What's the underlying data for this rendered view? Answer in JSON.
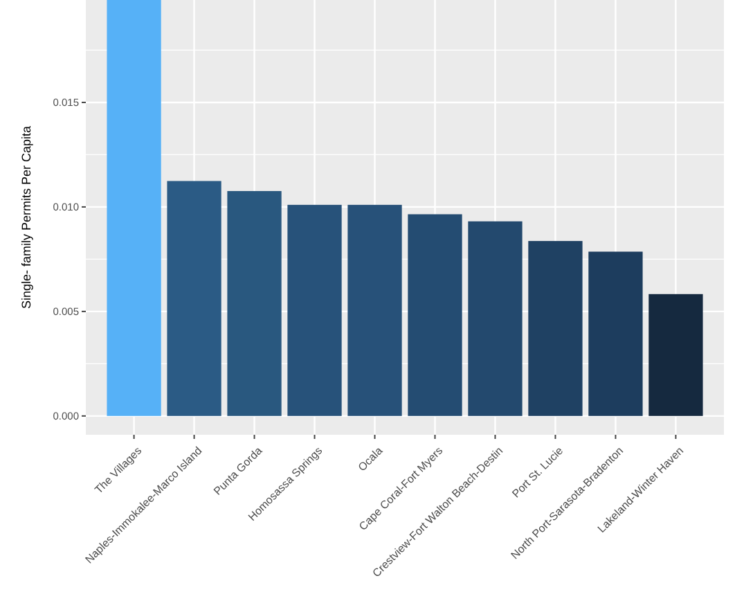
{
  "chart_data": {
    "type": "bar",
    "ylabel": "Single- family Permits Per Capita",
    "categories": [
      "The Villages",
      "Naples-Immokalee-Marco Island",
      "Punta Gorda",
      "Homosassa Springs",
      "Ocala",
      "Cape Coral-Fort Myers",
      "Crestview-Fort Walton Beach-Destin",
      "Port St. Lucie",
      "North Port-Sarasota-Bradenton",
      "Lakeland-Winter Haven"
    ],
    "values": [
      0.0199,
      0.01124,
      0.01076,
      0.0101,
      0.0101,
      0.00965,
      0.00931,
      0.00837,
      0.00786,
      0.00583
    ],
    "colors": [
      "#56b1f7",
      "#2b5b85",
      "#29587f",
      "#27527a",
      "#275179",
      "#244c72",
      "#23496e",
      "#1f4163",
      "#1d3d5e",
      "#15293f"
    ],
    "ylim": [
      -0.0009,
      0.0199
    ],
    "yticks": [
      {
        "value": 0,
        "label": "0.000"
      },
      {
        "value": 0.005,
        "label": "0.005"
      },
      {
        "value": 0.01,
        "label": "0.010"
      },
      {
        "value": 0.015,
        "label": "0.015"
      }
    ],
    "grid": true
  }
}
